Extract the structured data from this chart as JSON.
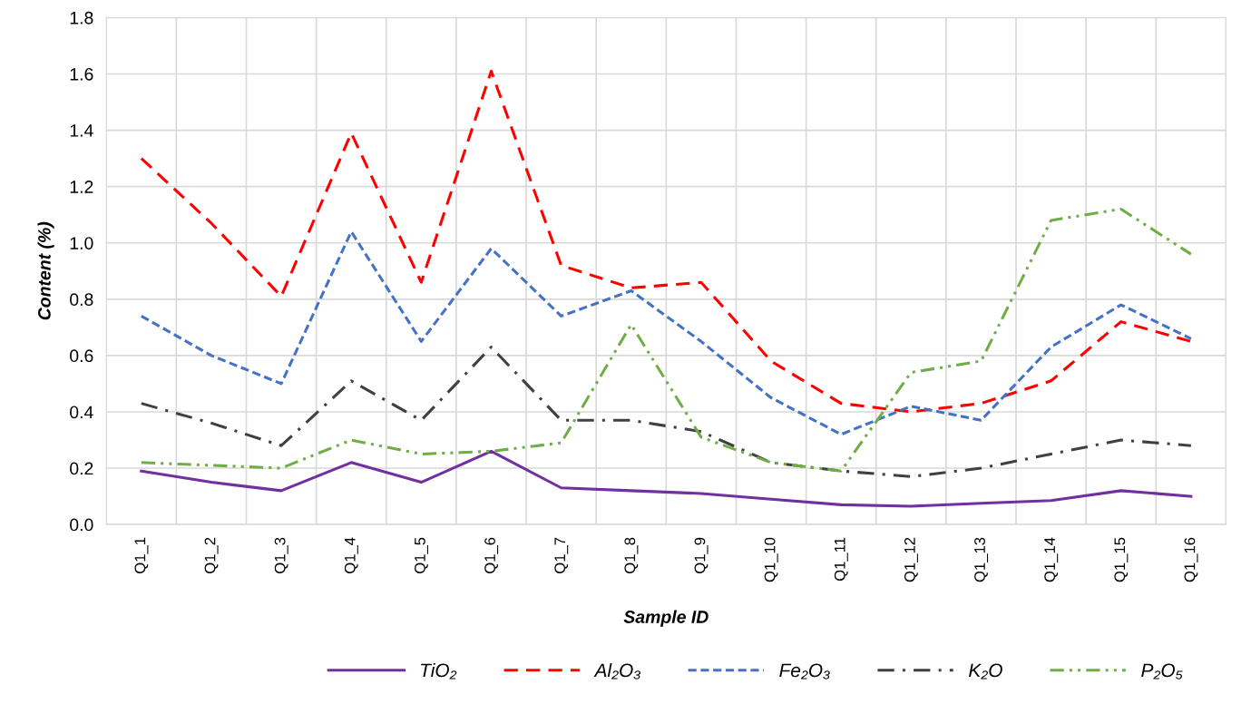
{
  "chart_data": {
    "type": "line",
    "xlabel": "Sample ID",
    "ylabel": "Content (%)",
    "categories": [
      "Q1_1",
      "Q1_2",
      "Q1_3",
      "Q1_4",
      "Q1_5",
      "Q1_6",
      "Q1_7",
      "Q1_8",
      "Q1_9",
      "Q1_10",
      "Q1_11",
      "Q1_12",
      "Q1_13",
      "Q1_14",
      "Q1_15",
      "Q1_16"
    ],
    "series": [
      {
        "name": "TiO₂",
        "color": "#7030a0",
        "line_style": "solid",
        "values": [
          0.19,
          0.15,
          0.12,
          0.22,
          0.15,
          0.26,
          0.13,
          0.12,
          0.11,
          0.09,
          0.07,
          0.065,
          0.075,
          0.085,
          0.12,
          0.1
        ]
      },
      {
        "name": "Al₂O₃",
        "color": "#ff0000",
        "line_style": "dashed",
        "values": [
          1.3,
          1.07,
          0.81,
          1.39,
          0.86,
          1.61,
          0.92,
          0.84,
          0.86,
          0.58,
          0.43,
          0.4,
          0.43,
          0.51,
          0.72,
          0.65
        ]
      },
      {
        "name": "Fe₂O₃",
        "color": "#4472c4",
        "line_style": "dotted",
        "values": [
          0.74,
          0.6,
          0.5,
          1.04,
          0.65,
          0.98,
          0.74,
          0.83,
          0.65,
          0.45,
          0.32,
          0.42,
          0.37,
          0.63,
          0.78,
          0.66
        ]
      },
      {
        "name": "K₂O",
        "color": "#404040",
        "line_style": "dashdot",
        "values": [
          0.43,
          0.36,
          0.28,
          0.51,
          0.37,
          0.63,
          0.37,
          0.37,
          0.33,
          0.22,
          0.19,
          0.17,
          0.2,
          0.25,
          0.3,
          0.28
        ]
      },
      {
        "name": "P₂O₅",
        "color": "#70ad47",
        "line_style": "dashdotdot",
        "values": [
          0.22,
          0.21,
          0.2,
          0.3,
          0.25,
          0.26,
          0.29,
          0.71,
          0.31,
          0.22,
          0.19,
          0.54,
          0.58,
          1.08,
          1.12,
          0.96
        ]
      }
    ],
    "ylim": [
      0,
      1.8
    ],
    "yticks": [
      {
        "value": 0,
        "label": "0.0"
      },
      {
        "value": 0.2,
        "label": "0.2"
      },
      {
        "value": 0.4,
        "label": "0.4"
      },
      {
        "value": 0.6,
        "label": "0.6"
      },
      {
        "value": 0.8,
        "label": "0.8"
      },
      {
        "value": 1.0,
        "label": "1.0"
      },
      {
        "value": 1.2,
        "label": "1.2"
      },
      {
        "value": 1.4,
        "label": "1.4"
      },
      {
        "value": 1.6,
        "label": "1.6"
      },
      {
        "value": 1.8,
        "label": "1.8"
      }
    ],
    "grid": true,
    "legend": "bottom",
    "marker": "none"
  }
}
